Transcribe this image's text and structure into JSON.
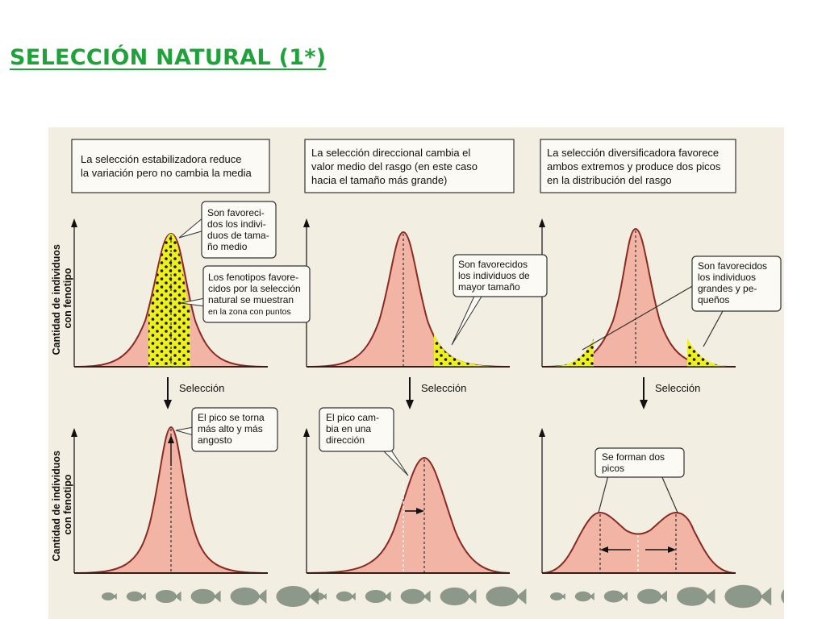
{
  "slide_title": "SELECCIÓN NATURAL (1*)",
  "y_axis_label_lines": [
    "Cantidad de individuos",
    "con fenotipo"
  ],
  "selection_label": "Selección",
  "panels": [
    {
      "id": "stabilizing",
      "header_lines": [
        "La selección estabilizadora reduce",
        "la variación pero no cambia la media"
      ],
      "callouts_top": [
        {
          "lines": [
            "Son favoreci-",
            "dos los indivi-",
            "duos de tama-",
            "ño medio"
          ]
        },
        {
          "lines": [
            "Los fenotipos favore-",
            "cidos por la selección",
            "natural se muestran",
            "en la zona con puntos"
          ]
        }
      ],
      "callout_bottom_lines": [
        "El pico se torna",
        "más alto y más",
        "angosto"
      ]
    },
    {
      "id": "directional",
      "header_lines": [
        "La selección direccional cambia el",
        "valor medio del rasgo (en este caso",
        "hacia el tamaño más grande)"
      ],
      "callouts_top": [
        {
          "lines": [
            "Son favorecidos",
            "los individuos de",
            "mayor tamaño"
          ]
        }
      ],
      "callout_bottom_lines": [
        "El pico cam-",
        "bia en una",
        "dirección"
      ]
    },
    {
      "id": "diversifying",
      "header_lines": [
        "La selección diversificadora favorece",
        "ambos extremos y produce dos picos",
        "en la distribución del rasgo"
      ],
      "callouts_top": [
        {
          "lines": [
            "Son favorecidos",
            "los individuos",
            "grandes y pe-",
            "queños"
          ]
        }
      ],
      "callout_bottom_lines": [
        "Se forman dos",
        "picos"
      ]
    }
  ],
  "colors": {
    "title": "#1fa23a",
    "curve_fill": "#f2b5a5",
    "curve_stroke": "#8a2a22",
    "favored_zone": "#eef01c",
    "dots": "#1a1a1a",
    "background": "#f2eee1",
    "fish": "#7a8a7a"
  }
}
